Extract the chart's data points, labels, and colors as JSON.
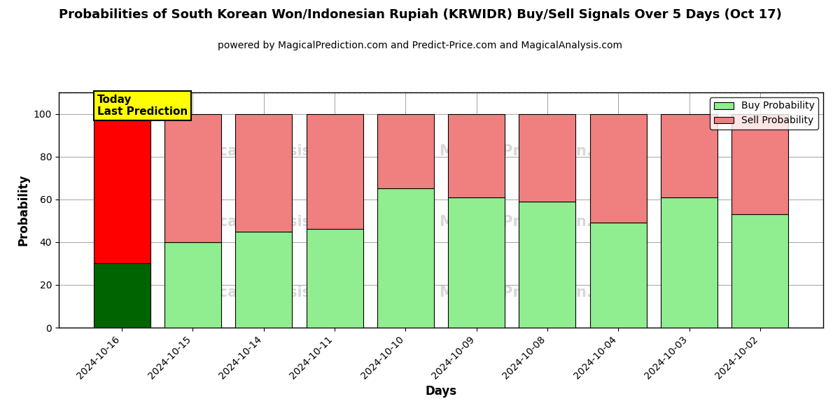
{
  "title": "Probabilities of South Korean Won/Indonesian Rupiah (KRWIDR) Buy/Sell Signals Over 5 Days (Oct 17)",
  "subtitle": "powered by MagicalPrediction.com and Predict-Price.com and MagicalAnalysis.com",
  "xlabel": "Days",
  "ylabel": "Probability",
  "categories": [
    "2024-10-16",
    "2024-10-15",
    "2024-10-14",
    "2024-10-11",
    "2024-10-10",
    "2024-10-09",
    "2024-10-08",
    "2024-10-04",
    "2024-10-03",
    "2024-10-02"
  ],
  "buy_values": [
    30,
    40,
    45,
    46,
    65,
    61,
    59,
    49,
    61,
    53
  ],
  "sell_values": [
    70,
    60,
    55,
    54,
    35,
    39,
    41,
    51,
    39,
    47
  ],
  "buy_color_today": "#006400",
  "sell_color_today": "#FF0000",
  "buy_color_normal": "#90EE90",
  "sell_color_normal": "#F08080",
  "today_label_bg": "#FFFF00",
  "today_label_text": "Today\nLast Prediction",
  "legend_buy": "Buy Probability",
  "legend_sell": "Sell Probability",
  "ylim": [
    0,
    110
  ],
  "dashed_line_y": 110,
  "figsize": [
    12,
    6
  ],
  "dpi": 100
}
